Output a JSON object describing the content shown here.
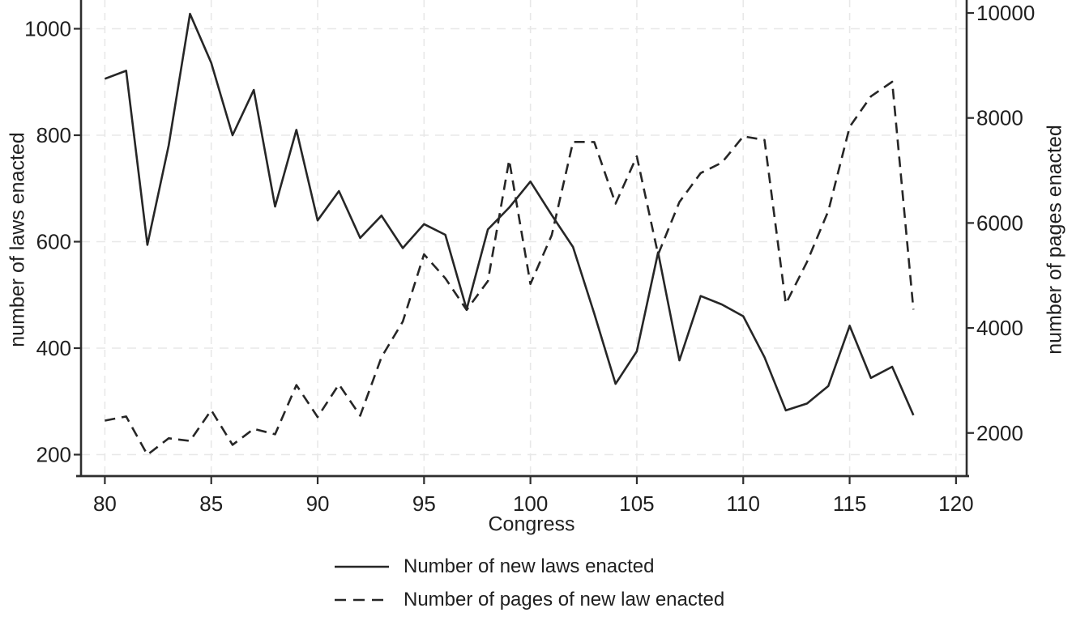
{
  "figure": {
    "background": "#ffffff",
    "x_axis": {
      "title": "Congress",
      "ticks": [
        80,
        85,
        90,
        95,
        100,
        105,
        110,
        115,
        120
      ],
      "range": [
        78.88,
        120.5
      ]
    },
    "y_left_axis": {
      "title": "number of laws enacted",
      "ticks": [
        200,
        400,
        600,
        800,
        1000
      ],
      "range": [
        159.7,
        1054
      ]
    },
    "y_right_axis": {
      "title": "number of pages enacted",
      "ticks": [
        2000,
        4000,
        6000,
        8000,
        10000
      ],
      "range": [
        1179,
        10247
      ]
    },
    "legend": [
      {
        "label": "Number of new laws enacted",
        "style": "solid"
      },
      {
        "label": "Number of pages of new law enacted",
        "style": "dashed"
      }
    ],
    "colors": {
      "line": "#262626",
      "grid": "#e8e8e8",
      "axis": "#2e2e2e",
      "text": "#1f1f1f",
      "background": "#ffffff"
    }
  },
  "chart_data": {
    "type": "line",
    "title": "",
    "xlabel": "Congress",
    "ylabel_left": "number of laws enacted",
    "ylabel_right": "number of pages enacted",
    "xlim": [
      78.88,
      120.5
    ],
    "ylim_left": [
      159.7,
      1054
    ],
    "ylim_right": [
      1179,
      10247
    ],
    "grid": true,
    "legend_position": "bottom-left",
    "x": [
      80,
      81,
      82,
      83,
      84,
      85,
      86,
      87,
      88,
      89,
      90,
      91,
      92,
      93,
      94,
      95,
      96,
      97,
      98,
      99,
      100,
      101,
      102,
      103,
      104,
      105,
      106,
      107,
      108,
      109,
      110,
      111,
      112,
      113,
      114,
      115,
      116,
      117,
      118
    ],
    "series": [
      {
        "name": "Number of new laws enacted",
        "axis": "left",
        "style": "solid",
        "values": [
          906,
          921,
          594,
          781,
          1028,
          936,
          800,
          885,
          666,
          810,
          640,
          695,
          607,
          649,
          588,
          633,
          613,
          473,
          623,
          664,
          713,
          650,
          590,
          465,
          333,
          394,
          580,
          377,
          498,
          482,
          460,
          383,
          283,
          296,
          329,
          442,
          344,
          365,
          274
        ]
      },
      {
        "name": "Number of pages of new law enacted",
        "axis": "right",
        "style": "dashed",
        "values": [
          2236,
          2314,
          1585,
          1899,
          1848,
          2435,
          1774,
          2078,
          1975,
          2912,
          2304,
          2927,
          2330,
          3443,
          4121,
          5403,
          4947,
          4343,
          4893,
          7198,
          4839,
          5767,
          7544,
          7542,
          6369,
          7269,
          5400,
          6400,
          6950,
          7150,
          7650,
          7580,
          4460,
          5260,
          6230,
          7830,
          8410,
          8690,
          4350
        ]
      }
    ]
  }
}
